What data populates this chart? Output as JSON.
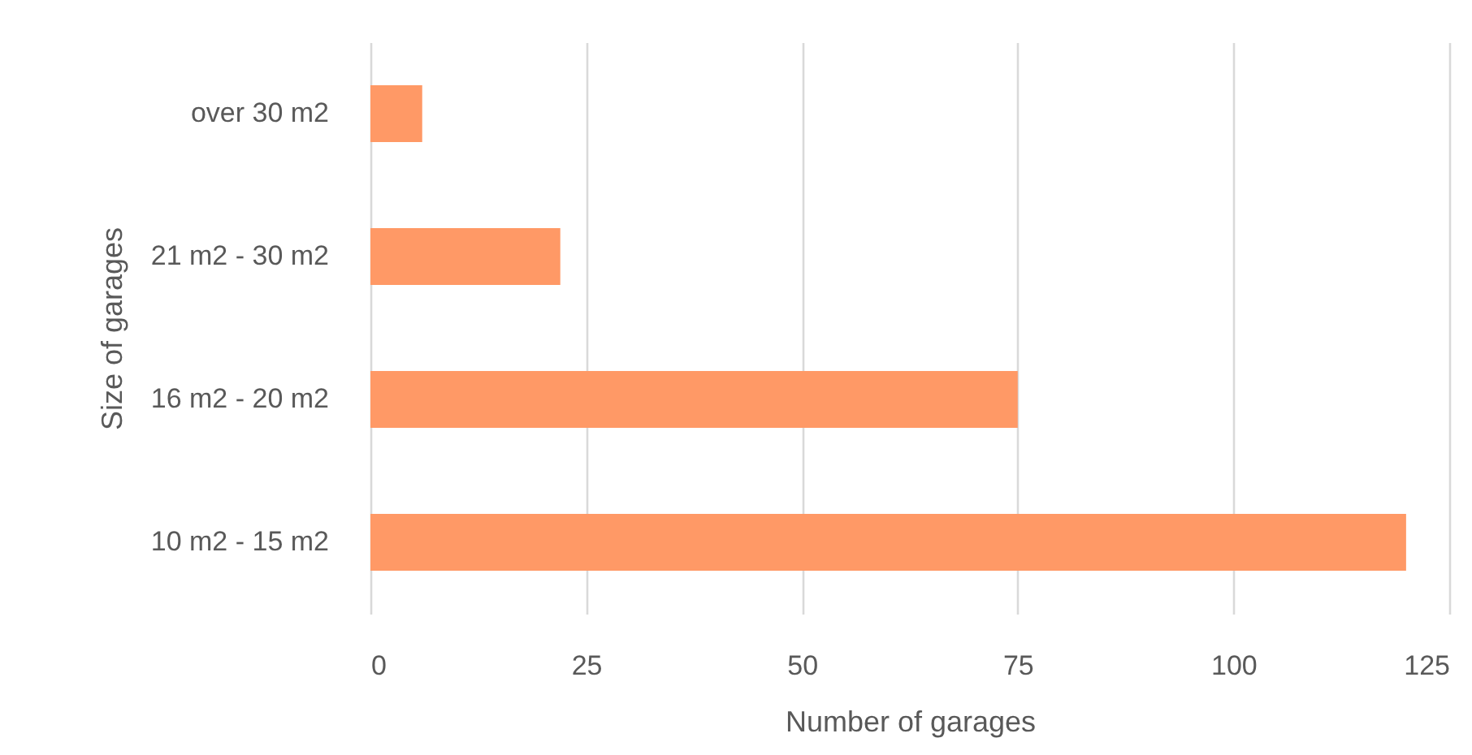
{
  "chart_data": {
    "type": "bar",
    "orientation": "horizontal",
    "categories": [
      "over 30 m2",
      "21 m2 - 30 m2",
      "16 m2 - 20 m2",
      "10 m2 - 15 m2"
    ],
    "values": [
      6,
      22,
      75,
      120
    ],
    "color": "#ff9966",
    "xlabel": "Number of garages",
    "ylabel": "Size of garages",
    "xlim": [
      0,
      125
    ],
    "xticks": [
      0,
      25,
      50,
      75,
      100,
      125
    ],
    "grid": "x"
  }
}
